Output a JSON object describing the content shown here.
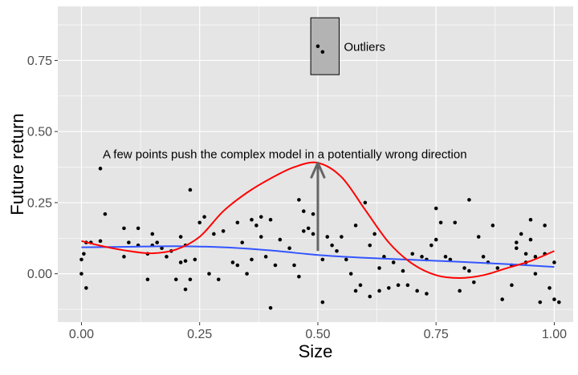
{
  "chart_data": {
    "type": "scatter",
    "xlabel": "Size",
    "ylabel": "Future return",
    "xlim": [
      -0.05,
      1.04
    ],
    "ylim": [
      -0.17,
      0.94
    ],
    "x_ticks": [
      0.0,
      0.25,
      0.5,
      0.75,
      1.0
    ],
    "x_tick_labels": [
      "0.00",
      "0.25",
      "0.50",
      "0.75",
      "1.00"
    ],
    "y_ticks": [
      0.0,
      0.25,
      0.5,
      0.75
    ],
    "y_tick_labels": [
      "0.00",
      "0.25",
      "0.50",
      "0.75"
    ],
    "grid": true,
    "colors": {
      "panel": "#e5e5e5",
      "grid": "#ffffff",
      "points": "#000000",
      "linear_fit": "#3355ff",
      "complex_fit": "#ff0000",
      "arrow": "#666666",
      "box_fill": "#b3b3b3"
    },
    "points": [
      [
        0.0,
        0.0
      ],
      [
        0.0,
        0.05
      ],
      [
        0.005,
        0.07
      ],
      [
        0.01,
        0.11
      ],
      [
        0.01,
        -0.05
      ],
      [
        0.02,
        0.11
      ],
      [
        0.04,
        0.37
      ],
      [
        0.04,
        0.115
      ],
      [
        0.05,
        0.21
      ],
      [
        0.09,
        0.16
      ],
      [
        0.09,
        0.06
      ],
      [
        0.1,
        0.11
      ],
      [
        0.12,
        0.1
      ],
      [
        0.12,
        0.16
      ],
      [
        0.14,
        0.07
      ],
      [
        0.14,
        -0.02
      ],
      [
        0.15,
        0.1
      ],
      [
        0.15,
        0.14
      ],
      [
        0.16,
        0.11
      ],
      [
        0.17,
        0.09
      ],
      [
        0.18,
        0.06
      ],
      [
        0.19,
        0.08
      ],
      [
        0.2,
        -0.02
      ],
      [
        0.21,
        0.13
      ],
      [
        0.21,
        0.04
      ],
      [
        0.22,
        0.1
      ],
      [
        0.22,
        0.045
      ],
      [
        0.22,
        -0.055
      ],
      [
        0.23,
        0.295
      ],
      [
        0.23,
        -0.02
      ],
      [
        0.24,
        0.05
      ],
      [
        0.25,
        0.18
      ],
      [
        0.26,
        0.2
      ],
      [
        0.27,
        0.0
      ],
      [
        0.28,
        0.14
      ],
      [
        0.29,
        -0.02
      ],
      [
        0.3,
        0.15
      ],
      [
        0.32,
        0.04
      ],
      [
        0.33,
        0.18
      ],
      [
        0.33,
        0.03
      ],
      [
        0.34,
        0.11
      ],
      [
        0.35,
        0.0
      ],
      [
        0.36,
        0.19
      ],
      [
        0.36,
        0.05
      ],
      [
        0.37,
        0.17
      ],
      [
        0.38,
        0.2
      ],
      [
        0.38,
        0.13
      ],
      [
        0.39,
        0.06
      ],
      [
        0.4,
        0.19
      ],
      [
        0.4,
        -0.12
      ],
      [
        0.41,
        0.03
      ],
      [
        0.42,
        0.12
      ],
      [
        0.44,
        0.09
      ],
      [
        0.45,
        0.03
      ],
      [
        0.46,
        0.26
      ],
      [
        0.46,
        -0.01
      ],
      [
        0.47,
        0.15
      ],
      [
        0.47,
        0.22
      ],
      [
        0.48,
        0.16
      ],
      [
        0.49,
        0.21
      ],
      [
        0.49,
        0.14
      ],
      [
        0.5,
        0.8
      ],
      [
        0.51,
        0.78
      ],
      [
        0.51,
        0.05
      ],
      [
        0.51,
        -0.1
      ],
      [
        0.52,
        0.13
      ],
      [
        0.53,
        0.1
      ],
      [
        0.54,
        0.08
      ],
      [
        0.55,
        0.13
      ],
      [
        0.56,
        0.05
      ],
      [
        0.57,
        0.0
      ],
      [
        0.58,
        0.17
      ],
      [
        0.58,
        -0.06
      ],
      [
        0.59,
        -0.04
      ],
      [
        0.6,
        0.25
      ],
      [
        0.61,
        0.1
      ],
      [
        0.61,
        -0.08
      ],
      [
        0.62,
        0.14
      ],
      [
        0.63,
        0.02
      ],
      [
        0.63,
        -0.06
      ],
      [
        0.64,
        0.06
      ],
      [
        0.65,
        -0.05
      ],
      [
        0.66,
        0.04
      ],
      [
        0.67,
        -0.04
      ],
      [
        0.68,
        0.01
      ],
      [
        0.69,
        -0.04
      ],
      [
        0.7,
        0.07
      ],
      [
        0.71,
        -0.06
      ],
      [
        0.72,
        0.06
      ],
      [
        0.73,
        0.05
      ],
      [
        0.73,
        -0.07
      ],
      [
        0.74,
        0.1
      ],
      [
        0.75,
        0.23
      ],
      [
        0.75,
        0.12
      ],
      [
        0.76,
        0.18
      ],
      [
        0.77,
        0.06
      ],
      [
        0.78,
        0.05
      ],
      [
        0.79,
        0.18
      ],
      [
        0.8,
        -0.06
      ],
      [
        0.81,
        0.02
      ],
      [
        0.82,
        0.26
      ],
      [
        0.82,
        0.01
      ],
      [
        0.83,
        -0.03
      ],
      [
        0.84,
        0.13
      ],
      [
        0.85,
        0.06
      ],
      [
        0.86,
        0.04
      ],
      [
        0.87,
        0.17
      ],
      [
        0.88,
        0.02
      ],
      [
        0.89,
        -0.09
      ],
      [
        0.91,
        0.03
      ],
      [
        0.91,
        -0.04
      ],
      [
        0.92,
        0.09
      ],
      [
        0.92,
        0.11
      ],
      [
        0.93,
        0.14
      ],
      [
        0.94,
        0.07
      ],
      [
        0.94,
        0.04
      ],
      [
        0.95,
        0.19
      ],
      [
        0.95,
        0.12
      ],
      [
        0.96,
        0.06
      ],
      [
        0.96,
        0.0
      ],
      [
        0.97,
        -0.1
      ],
      [
        0.98,
        0.17
      ],
      [
        0.98,
        0.07
      ],
      [
        0.99,
        -0.05
      ],
      [
        1.0,
        0.04
      ],
      [
        1.0,
        -0.09
      ],
      [
        1.01,
        -0.1
      ]
    ],
    "linear_fit": [
      [
        0.0,
        0.093
      ],
      [
        0.1,
        0.095
      ],
      [
        0.2,
        0.097
      ],
      [
        0.3,
        0.093
      ],
      [
        0.4,
        0.082
      ],
      [
        0.5,
        0.066
      ],
      [
        0.6,
        0.056
      ],
      [
        0.7,
        0.049
      ],
      [
        0.8,
        0.042
      ],
      [
        0.9,
        0.034
      ],
      [
        1.0,
        0.024
      ]
    ],
    "complex_fit": [
      [
        0.0,
        0.115
      ],
      [
        0.05,
        0.095
      ],
      [
        0.1,
        0.08
      ],
      [
        0.15,
        0.072
      ],
      [
        0.2,
        0.085
      ],
      [
        0.25,
        0.13
      ],
      [
        0.3,
        0.22
      ],
      [
        0.35,
        0.285
      ],
      [
        0.4,
        0.335
      ],
      [
        0.45,
        0.375
      ],
      [
        0.5,
        0.39
      ],
      [
        0.55,
        0.34
      ],
      [
        0.6,
        0.225
      ],
      [
        0.65,
        0.11
      ],
      [
        0.7,
        0.035
      ],
      [
        0.75,
        -0.005
      ],
      [
        0.8,
        -0.015
      ],
      [
        0.85,
        -0.005
      ],
      [
        0.9,
        0.02
      ],
      [
        0.95,
        0.045
      ],
      [
        1.0,
        0.08
      ]
    ],
    "annotation": {
      "text": "A few points push the complex model in a potentially wrong direction",
      "x": 0.045,
      "y": 0.42,
      "arrow_from": [
        0.5,
        0.08
      ],
      "arrow_to": [
        0.5,
        0.39
      ]
    },
    "outlier_box": {
      "label": "Outliers",
      "xmin": 0.485,
      "xmax": 0.545,
      "ymin": 0.7,
      "ymax": 0.9,
      "label_x": 0.555,
      "label_y": 0.8
    }
  }
}
